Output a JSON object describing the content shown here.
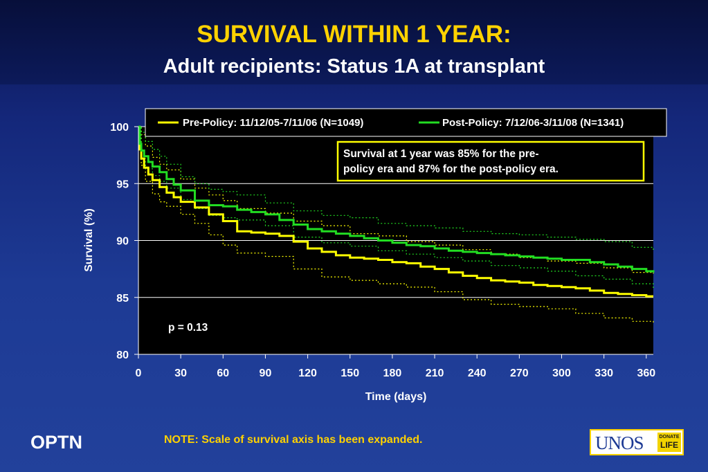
{
  "header": {
    "title": "SURVIVAL WITHIN 1 YEAR:",
    "subtitle": "Adult recipients: Status 1A at transplant"
  },
  "footer": {
    "org": "OPTN",
    "note": "NOTE: Scale of survival axis has been expanded.",
    "logo_main": "UNOS",
    "logo_badge_top": "DONATE",
    "logo_badge_bottom": "LIFE"
  },
  "colors": {
    "title": "#ffd200",
    "pre_policy": "#ffff00",
    "post_policy": "#22dd22",
    "plot_bg": "#000000",
    "annotation_border": "#ffff00"
  },
  "chart_data": {
    "type": "line",
    "xlabel": "Time (days)",
    "ylabel": "Survival (%)",
    "xlim": [
      0,
      365
    ],
    "ylim": [
      80,
      101
    ],
    "xticks": [
      0,
      30,
      60,
      90,
      120,
      150,
      180,
      210,
      240,
      270,
      300,
      330,
      360
    ],
    "yticks": [
      80,
      85,
      90,
      95,
      100
    ],
    "grid": "horizontal",
    "legend_position": "top",
    "annotation": "Survival at 1 year was 85% for the pre-policy era and 87% for the post-policy era.",
    "pvalue_label": "p = 0.13",
    "series": [
      {
        "name": "Pre-Policy: 11/12/05-7/11/06 (N=1049)",
        "style": "solid",
        "x": [
          0,
          1,
          2,
          4,
          7,
          10,
          15,
          20,
          25,
          30,
          40,
          50,
          60,
          70,
          80,
          90,
          100,
          110,
          120,
          130,
          140,
          150,
          160,
          170,
          180,
          190,
          200,
          210,
          220,
          230,
          240,
          250,
          260,
          270,
          280,
          290,
          300,
          310,
          320,
          330,
          340,
          350,
          360,
          365
        ],
        "y": [
          100,
          98.0,
          97.2,
          96.4,
          95.8,
          95.3,
          94.7,
          94.2,
          93.8,
          93.4,
          92.9,
          92.3,
          91.7,
          90.8,
          90.7,
          90.6,
          90.4,
          89.9,
          89.3,
          89.0,
          88.7,
          88.5,
          88.4,
          88.3,
          88.1,
          88.0,
          87.7,
          87.5,
          87.2,
          86.9,
          86.7,
          86.5,
          86.4,
          86.3,
          86.1,
          86.0,
          85.9,
          85.8,
          85.6,
          85.4,
          85.3,
          85.2,
          85.1,
          85.1
        ]
      },
      {
        "name": "Post-Policy: 7/12/06-3/11/08 (N=1341)",
        "style": "solid",
        "x": [
          0,
          1,
          2,
          4,
          7,
          10,
          15,
          20,
          25,
          30,
          40,
          50,
          60,
          70,
          80,
          90,
          100,
          110,
          120,
          130,
          140,
          150,
          160,
          170,
          180,
          190,
          200,
          210,
          220,
          230,
          240,
          250,
          260,
          270,
          280,
          290,
          300,
          310,
          320,
          330,
          340,
          350,
          360,
          365
        ],
        "y": [
          100,
          98.5,
          97.9,
          97.4,
          96.9,
          96.5,
          96.0,
          95.4,
          94.9,
          94.4,
          93.5,
          93.1,
          93.0,
          92.7,
          92.5,
          92.3,
          91.8,
          91.4,
          91.0,
          90.8,
          90.6,
          90.4,
          90.2,
          90.0,
          89.8,
          89.6,
          89.5,
          89.3,
          89.1,
          89.0,
          88.9,
          88.8,
          88.7,
          88.6,
          88.5,
          88.4,
          88.3,
          88.3,
          88.1,
          87.9,
          87.7,
          87.5,
          87.3,
          87.2
        ]
      },
      {
        "name": "",
        "style": "dotted",
        "color_of": "pre_policy",
        "x": [
          0,
          2,
          5,
          10,
          15,
          20,
          30,
          40,
          50,
          60,
          70,
          90,
          110,
          130,
          150,
          170,
          190,
          210,
          230,
          250,
          270,
          290,
          310,
          330,
          350,
          365
        ],
        "y": [
          100,
          96.6,
          95.2,
          94.1,
          93.4,
          93.0,
          92.3,
          91.5,
          90.5,
          89.6,
          88.9,
          88.6,
          87.5,
          86.8,
          86.5,
          86.2,
          85.9,
          85.5,
          84.8,
          84.4,
          84.2,
          84.0,
          83.6,
          83.2,
          82.9,
          82.8
        ]
      },
      {
        "name": "",
        "style": "dotted",
        "color_of": "pre_policy",
        "x": [
          0,
          2,
          5,
          10,
          15,
          20,
          30,
          40,
          50,
          60,
          70,
          90,
          110,
          130,
          150,
          170,
          190,
          210,
          230,
          250,
          270,
          290,
          310,
          330,
          350,
          365
        ],
        "y": [
          100,
          99.3,
          98.3,
          97.3,
          96.7,
          96.2,
          95.4,
          94.6,
          94.0,
          93.5,
          92.8,
          92.4,
          91.7,
          91.3,
          90.6,
          90.4,
          89.9,
          89.6,
          89.2,
          88.8,
          88.5,
          88.2,
          88.0,
          87.6,
          87.2,
          87.1
        ]
      },
      {
        "name": "",
        "style": "dotted",
        "color_of": "post_policy",
        "x": [
          0,
          2,
          5,
          10,
          15,
          20,
          30,
          40,
          50,
          60,
          70,
          90,
          110,
          130,
          150,
          170,
          190,
          210,
          230,
          250,
          270,
          290,
          310,
          330,
          350,
          365
        ],
        "y": [
          100,
          97.2,
          96.3,
          95.7,
          95.2,
          94.6,
          93.6,
          92.8,
          92.2,
          92.0,
          91.8,
          91.3,
          90.3,
          89.8,
          89.5,
          89.1,
          88.8,
          88.5,
          88.2,
          87.8,
          87.6,
          87.3,
          86.9,
          86.6,
          86.2,
          85.7
        ]
      },
      {
        "name": "",
        "style": "dotted",
        "color_of": "post_policy",
        "x": [
          0,
          2,
          5,
          10,
          15,
          20,
          30,
          40,
          50,
          60,
          70,
          90,
          110,
          130,
          150,
          170,
          190,
          210,
          230,
          250,
          270,
          290,
          310,
          330,
          350,
          365
        ],
        "y": [
          100,
          99.5,
          98.7,
          98.0,
          97.4,
          96.7,
          95.6,
          95.0,
          94.5,
          94.3,
          94.0,
          93.3,
          92.6,
          92.2,
          92.0,
          91.5,
          91.3,
          91.1,
          90.8,
          90.6,
          90.5,
          90.3,
          90.1,
          89.9,
          89.4,
          89.1
        ]
      }
    ]
  }
}
